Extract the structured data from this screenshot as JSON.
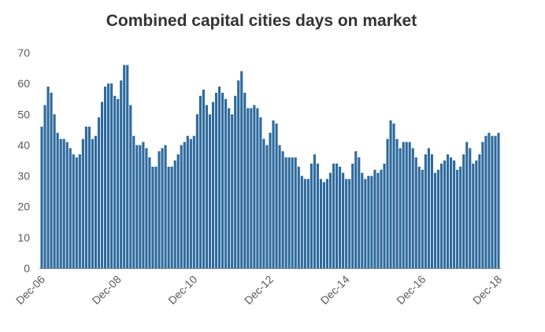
{
  "chart_data": {
    "type": "bar",
    "title": "Combined capital cities days on market",
    "xlabel": "",
    "ylabel": "",
    "ylim": [
      0,
      70
    ],
    "yticks": [
      0,
      10,
      20,
      30,
      40,
      50,
      60,
      70
    ],
    "x_tick_labels": [
      "Dec-06",
      "Dec-08",
      "Dec-10",
      "Dec-12",
      "Dec-14",
      "Dec-16",
      "Dec-18"
    ],
    "grid": false,
    "bar_color": "#2d6a9d",
    "values": [
      46,
      53,
      59,
      57,
      50,
      44,
      42,
      42,
      41,
      39,
      37,
      36,
      37,
      42,
      46,
      46,
      42,
      43,
      49,
      54,
      59,
      60,
      60,
      56,
      55,
      61,
      66,
      66,
      53,
      43,
      40,
      40,
      41,
      39,
      36,
      33,
      33,
      38,
      39,
      40,
      33,
      33,
      35,
      37,
      40,
      41,
      43,
      42,
      43,
      50,
      56,
      58,
      53,
      50,
      54,
      57,
      59,
      57,
      55,
      52,
      50,
      56,
      61,
      64,
      57,
      52,
      52,
      53,
      52,
      49,
      42,
      40,
      44,
      48,
      47,
      40,
      38,
      36,
      36,
      36,
      36,
      33,
      30,
      29,
      29,
      34,
      37,
      34,
      29,
      28,
      29,
      31,
      34,
      34,
      33,
      31,
      29,
      29,
      34,
      38,
      36,
      31,
      29,
      30,
      30,
      32,
      31,
      32,
      34,
      42,
      48,
      47,
      42,
      39,
      41,
      41,
      41,
      39,
      36,
      33,
      32,
      37,
      39,
      37,
      31,
      32,
      34,
      35,
      37,
      36,
      35,
      32,
      33,
      37,
      41,
      39,
      34,
      35,
      37,
      41,
      43,
      44,
      43,
      43,
      44
    ]
  }
}
